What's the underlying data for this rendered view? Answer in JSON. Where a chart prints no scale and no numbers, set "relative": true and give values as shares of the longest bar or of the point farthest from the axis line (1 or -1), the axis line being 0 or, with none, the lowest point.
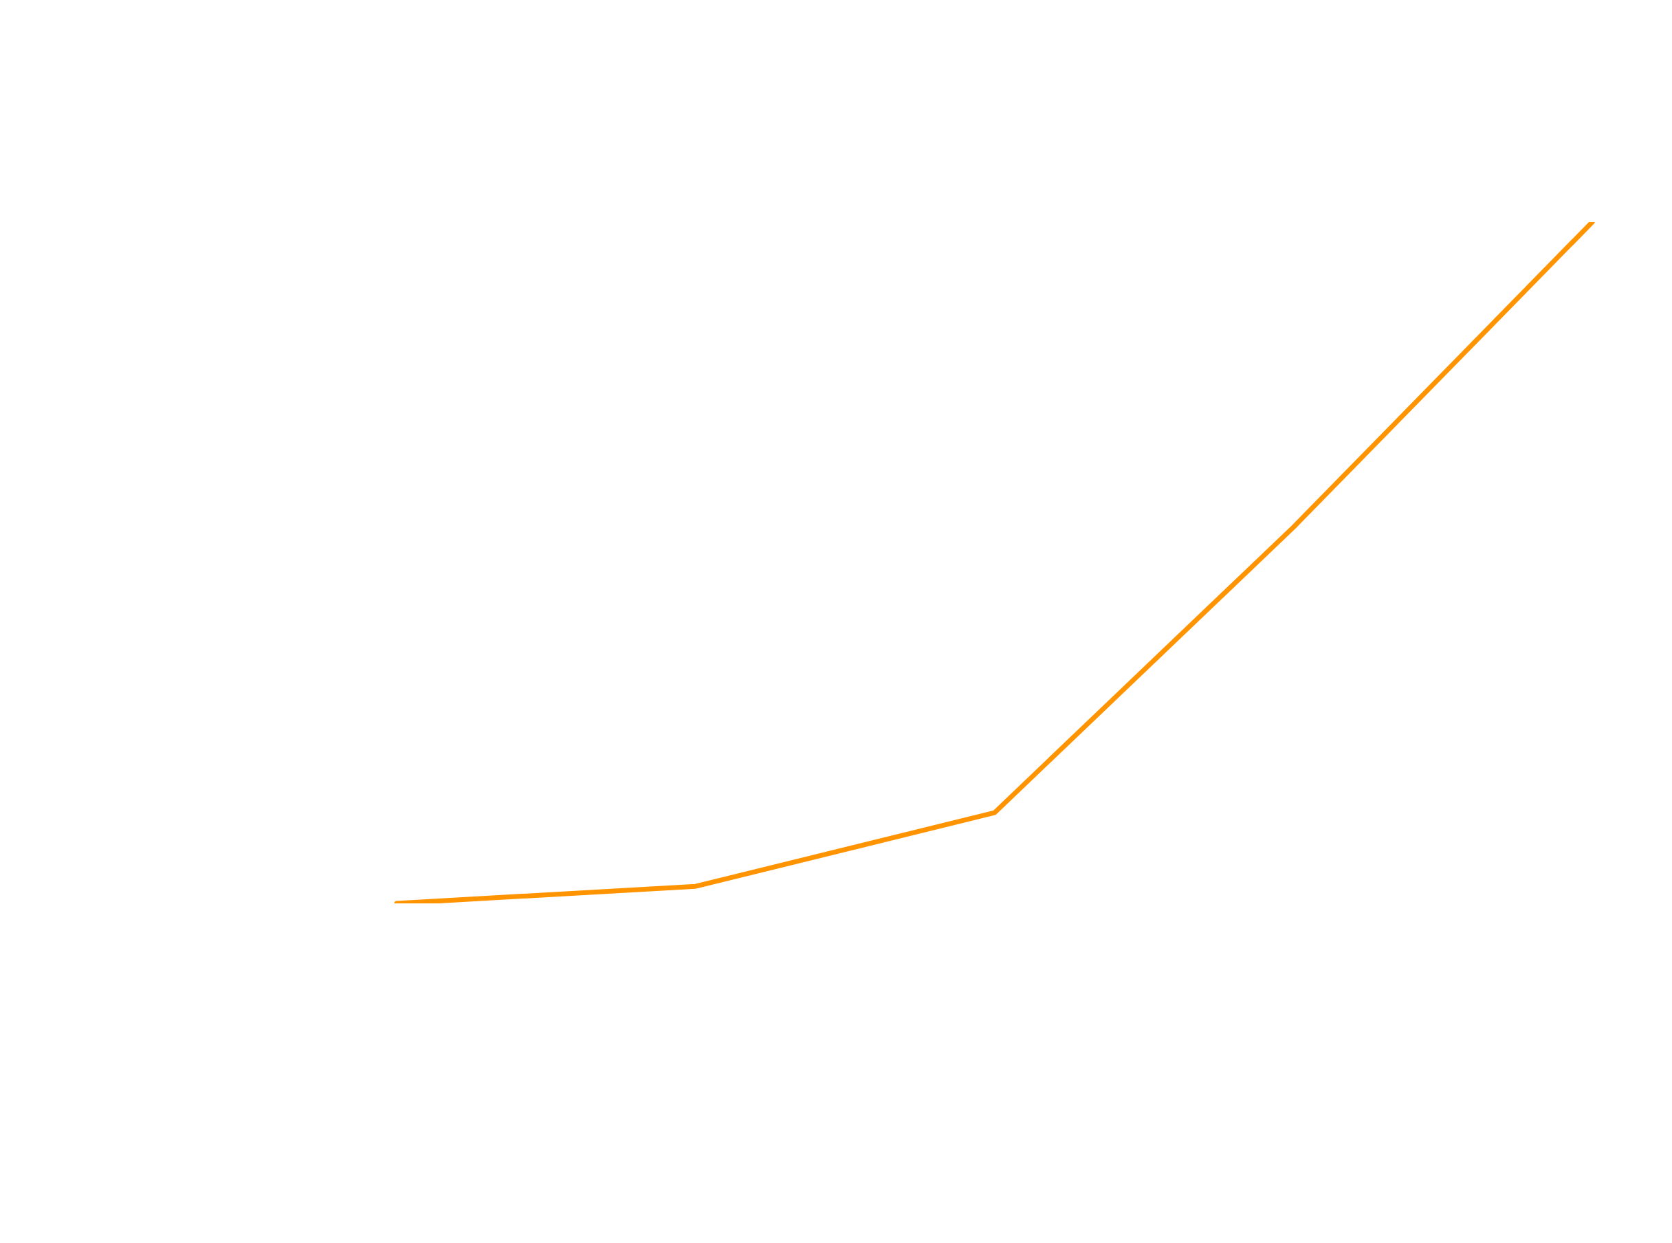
{
  "chart_data": {
    "type": "line",
    "relative": true,
    "categories": [
      null,
      null,
      null,
      null,
      null
    ],
    "values": [
      0,
      0.025,
      0.133,
      0.552,
      1
    ],
    "color": "#ff9400",
    "grid": false,
    "legend": false,
    "marker": "none",
    "line_style": "solid"
  }
}
